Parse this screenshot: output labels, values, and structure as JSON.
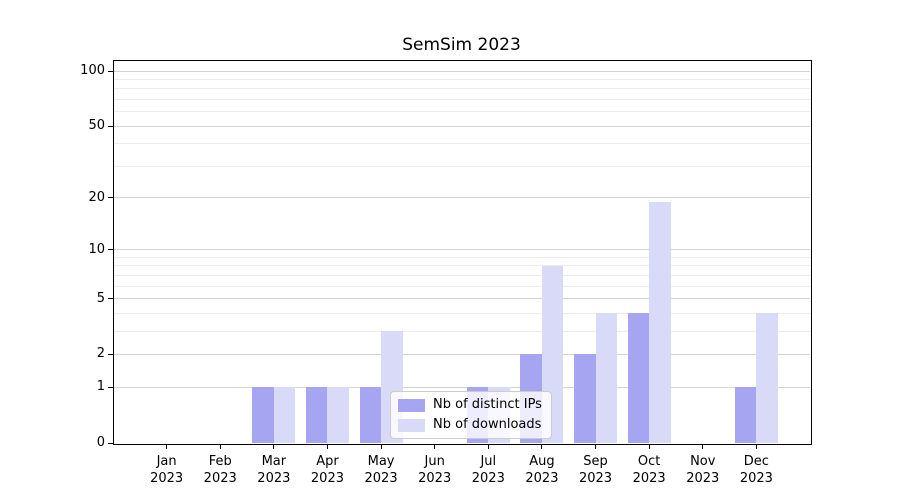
{
  "chart_data": {
    "type": "bar",
    "title": "SemSim 2023",
    "categories": [
      "Jan",
      "Feb",
      "Mar",
      "Apr",
      "May",
      "Jun",
      "Jul",
      "Aug",
      "Sep",
      "Oct",
      "Nov",
      "Dec"
    ],
    "category_year": "2023",
    "series": [
      {
        "name": "Nb of distinct IPs",
        "color": "#a5a5f2",
        "values": [
          0,
          0,
          1,
          1,
          1,
          0,
          1,
          2,
          2,
          4,
          0,
          1
        ]
      },
      {
        "name": "Nb of downloads",
        "color": "#d9d9f8",
        "values": [
          0,
          0,
          1,
          1,
          3,
          0,
          1,
          8,
          4,
          19,
          0,
          4
        ]
      }
    ],
    "xlabel": "",
    "ylabel": "",
    "yscale": "log1p",
    "ylim": [
      0,
      115
    ],
    "yticks": [
      0,
      1,
      2,
      5,
      10,
      20,
      50,
      100
    ],
    "yticks_minor": [
      3,
      4,
      6,
      7,
      8,
      9,
      30,
      40,
      60,
      70,
      80,
      90
    ],
    "grid": "horizontal",
    "legend_position": "lower-center"
  },
  "colors": {
    "background": "#ffffff",
    "axis": "#000000",
    "grid_major": "#d4d4d4",
    "grid_minor": "#ececec",
    "bar_distinct_ips": "#a5a5f2",
    "bar_downloads": "#d9d9f8",
    "legend_border": "#cccccc"
  }
}
